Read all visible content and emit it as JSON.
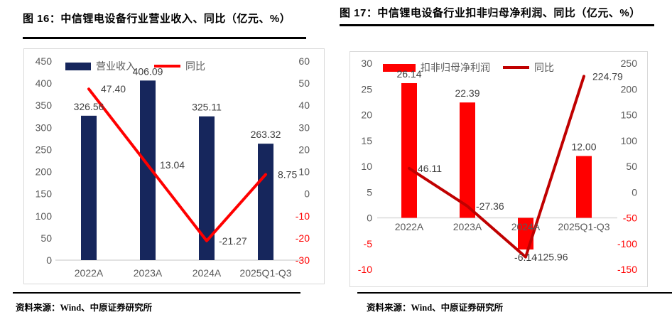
{
  "figures": [
    {
      "title": "图 16：中信锂电设备行业营业收入、同比（亿元、%）",
      "source": "资料来源：Wind、中原证券研究所"
    },
    {
      "title": "图 17：中信锂电设备行业扣非归母净利润、同比（亿元、%）",
      "source": "资料来源：Wind、中原证券研究所"
    }
  ],
  "chart_data": [
    {
      "type": "bar+line",
      "title": "中信锂电设备行业营业收入、同比（亿元、%）",
      "categories": [
        "2022A",
        "2023A",
        "2024A",
        "2025Q1-Q3"
      ],
      "series": [
        {
          "name": "营业收入",
          "type": "bar",
          "axis": "left",
          "color": "#16265C",
          "values": [
            326.56,
            406.09,
            325.11,
            263.32
          ]
        },
        {
          "name": "同比",
          "type": "line",
          "axis": "right",
          "color": "#FF0000",
          "values": [
            47.4,
            13.04,
            -21.27,
            8.75
          ]
        }
      ],
      "axes": {
        "left": {
          "min": 0,
          "max": 450,
          "step": 50
        },
        "right": {
          "min": -30,
          "max": 60,
          "step": 10
        }
      },
      "legend_position": "top",
      "gridlines": false,
      "value_label_decimals": 2,
      "tick_color": "#595959",
      "negative_tick_color": "#FF0000",
      "value_label_color": "#404040",
      "zero_line_color": "#D9D9D9"
    },
    {
      "type": "bar+line",
      "title": "中信锂电设备行业扣非归母净利润、同比（亿元、%）",
      "categories": [
        "2022A",
        "2023A",
        "2024A",
        "2025Q1-Q3"
      ],
      "series": [
        {
          "name": "扣非归母净利润",
          "type": "bar",
          "axis": "left",
          "color": "#FF0000",
          "values": [
            26.14,
            22.39,
            -6.14,
            12.0
          ]
        },
        {
          "name": "同比",
          "type": "line",
          "axis": "right",
          "color": "#C00000",
          "values": [
            46.11,
            -27.36,
            -125.96,
            224.79
          ]
        }
      ],
      "axes": {
        "left": {
          "min": -10,
          "max": 30,
          "step": 5
        },
        "right": {
          "min": -150,
          "max": 250,
          "step": 50
        }
      },
      "legend_position": "top",
      "gridlines": false,
      "value_label_decimals": 2,
      "tick_color": "#595959",
      "negative_tick_color": "#FF0000",
      "value_label_color": "#404040",
      "zero_line_color": "#D9D9D9"
    }
  ]
}
